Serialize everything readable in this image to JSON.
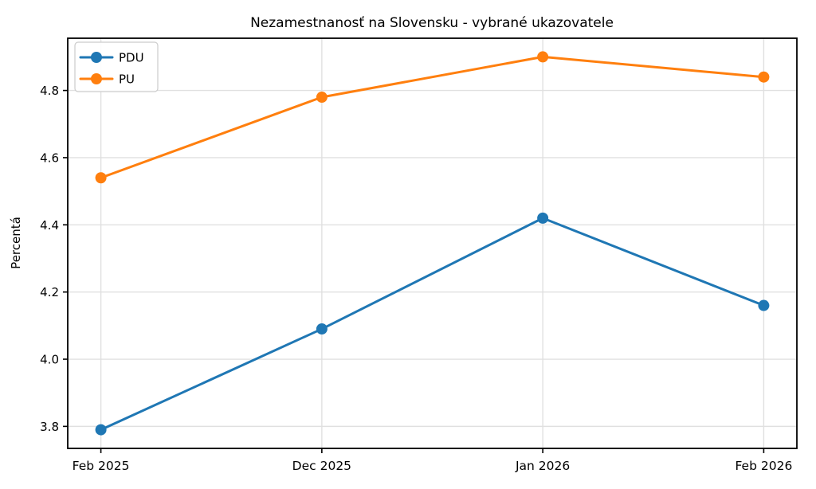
{
  "chart_data": {
    "type": "line",
    "title": "Nezamestnanosť na Slovensku - vybrané ukazovatele",
    "xlabel": "",
    "ylabel": "Percentá",
    "categories": [
      "Feb 2025",
      "Dec 2025",
      "Jan 2026",
      "Feb 2026"
    ],
    "series": [
      {
        "name": "PDU",
        "color": "#1f77b4",
        "values": [
          3.79,
          4.09,
          4.42,
          4.16
        ]
      },
      {
        "name": "PU",
        "color": "#ff7f0e",
        "values": [
          4.54,
          4.78,
          4.9,
          4.84
        ]
      }
    ],
    "yticks": [
      3.8,
      4.0,
      4.2,
      4.4,
      4.6,
      4.8
    ],
    "ylim": [
      3.7345,
      4.9555
    ],
    "xlim": [
      -0.15,
      3.15
    ],
    "grid": true,
    "grid_color": "#e0e0e0",
    "axis_color": "#000000",
    "background": "#ffffff",
    "legend_position": "upper-left",
    "marker": "circle",
    "line_width": 3,
    "marker_radius": 7
  }
}
